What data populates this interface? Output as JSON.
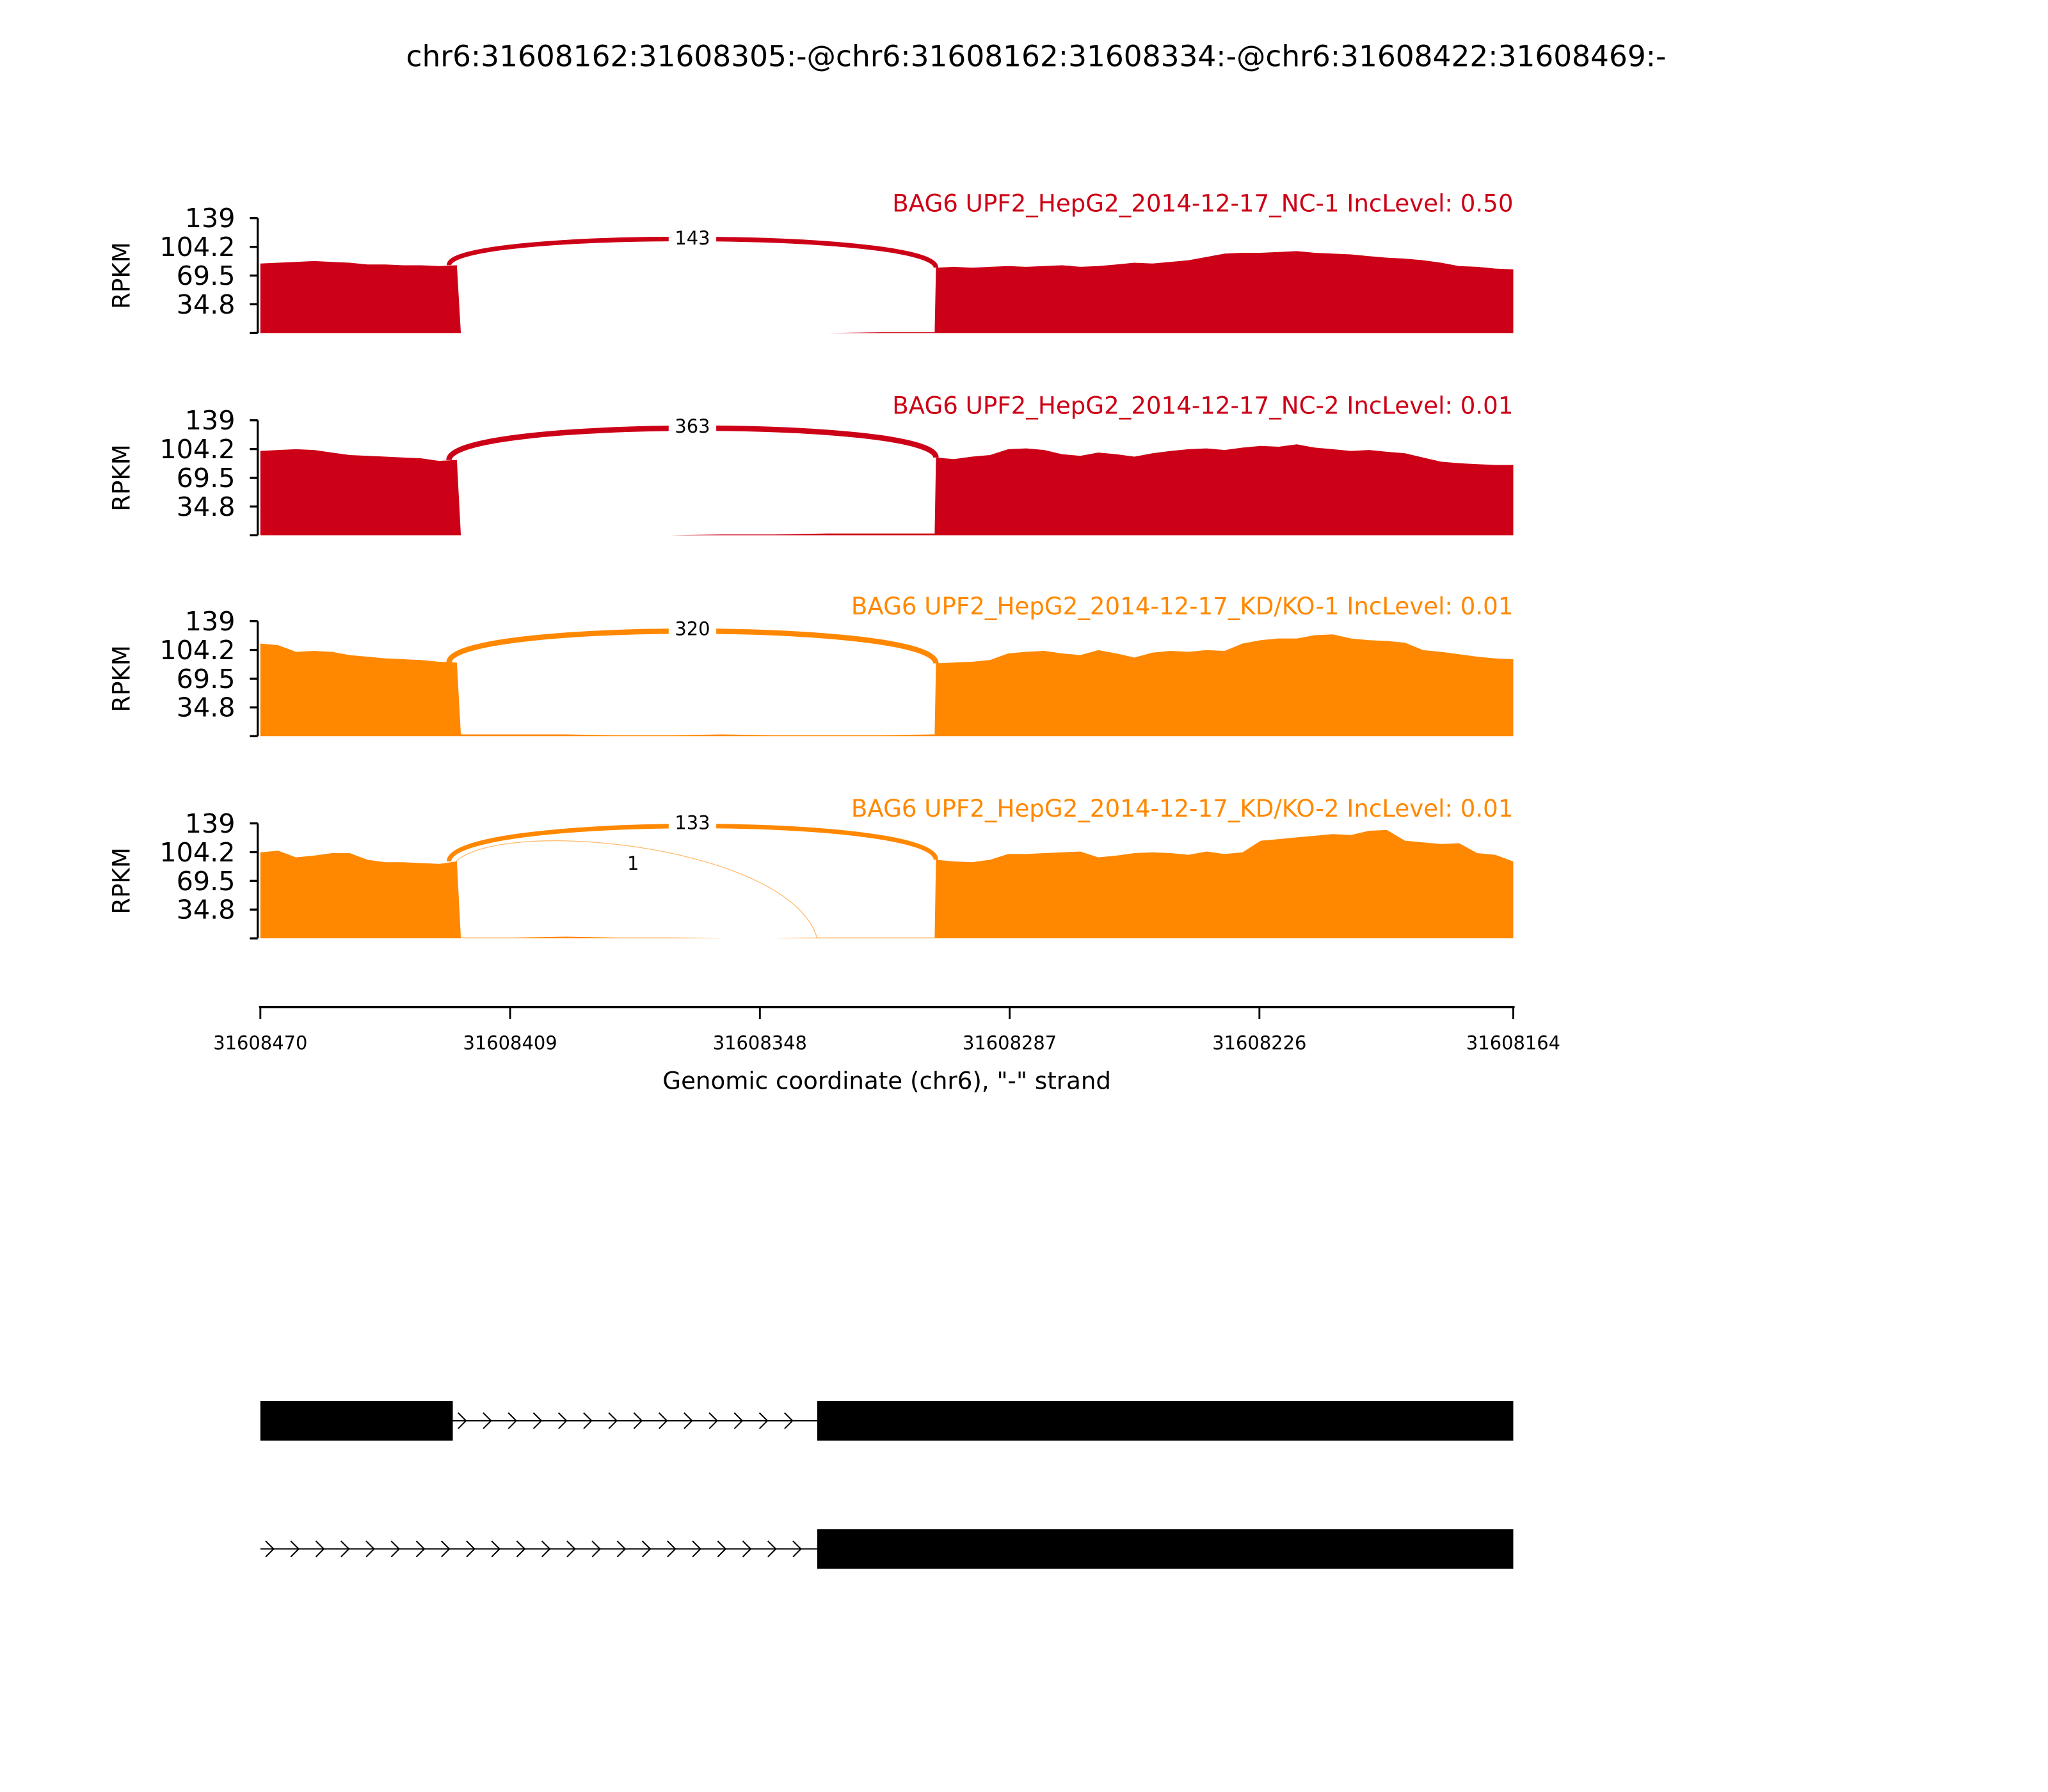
{
  "title": "chr6:31608162:31608305:-@chr6:31608162:31608334:-@chr6:31608422:31608469:-",
  "chart_data": {
    "type": "area",
    "title": "chr6:31608162:31608305:-@chr6:31608162:31608334:-@chr6:31608422:31608469:-",
    "xlabel": "Genomic coordinate (chr6), \"-\" strand",
    "ylabel": "RPKM",
    "xlim": [
      31608470,
      31608164
    ],
    "xticks": [
      "31608470",
      "31608409",
      "31608348",
      "31608287",
      "31608226",
      "31608164"
    ],
    "ylim": [
      0,
      139
    ],
    "yticks": [
      "139",
      "104.2",
      "69.5",
      "34.8"
    ],
    "exon_left": [
      31608470,
      31608422
    ],
    "exon_right": [
      31608305,
      31608164
    ],
    "panels": [
      {
        "label": "BAG6 UPF2_HepG2_2014-12-17_NC-1 IncLevel: 0.50",
        "color": "#cc0016",
        "left": [
          84,
          85,
          86,
          87,
          86,
          85,
          83,
          83,
          82,
          82,
          81,
          82
        ],
        "intron": [
          0,
          0,
          0,
          0,
          0,
          0,
          0,
          0,
          1,
          1
        ],
        "right": [
          79,
          80,
          79,
          80,
          81,
          80,
          81,
          82,
          80,
          81,
          83,
          85,
          84,
          86,
          88,
          92,
          96,
          97,
          97,
          98,
          99,
          97,
          96,
          95,
          93,
          91,
          90,
          88,
          85,
          81,
          80,
          78,
          77
        ],
        "junctions": [
          {
            "count": "143",
            "from": 31608422,
            "to": 31608305,
            "peak": 112
          }
        ]
      },
      {
        "label": "BAG6 UPF2_HepG2_2014-12-17_NC-2 IncLevel: 0.01",
        "color": "#cc0016",
        "left": [
          102,
          103,
          104,
          103,
          100,
          97,
          96,
          95,
          94,
          93,
          90,
          91
        ],
        "intron": [
          0,
          0,
          0,
          0,
          0,
          1,
          1,
          2,
          2,
          2
        ],
        "right": [
          94,
          92,
          95,
          97,
          104,
          105,
          103,
          98,
          96,
          100,
          98,
          95,
          99,
          102,
          104,
          105,
          103,
          106,
          108,
          107,
          110,
          106,
          104,
          102,
          103,
          101,
          99,
          94,
          89,
          87,
          86,
          85,
          85
        ],
        "junctions": [
          {
            "count": "363",
            "from": 31608422,
            "to": 31608305,
            "peak": 129
          }
        ]
      },
      {
        "label": "BAG6 UPF2_HepG2_2014-12-17_KD/KO-1 IncLevel: 0.01",
        "color": "#ff8800",
        "left": [
          112,
          110,
          102,
          103,
          102,
          98,
          96,
          94,
          93,
          92,
          90,
          89
        ],
        "intron": [
          2,
          2,
          2,
          1,
          1,
          2,
          1,
          1,
          1,
          2
        ],
        "right": [
          88,
          89,
          90,
          92,
          100,
          102,
          103,
          100,
          98,
          104,
          100,
          95,
          101,
          103,
          102,
          104,
          103,
          112,
          116,
          118,
          118,
          122,
          123,
          118,
          116,
          115,
          113,
          104,
          102,
          99,
          96,
          94,
          93
        ],
        "junctions": [
          {
            "count": "320",
            "from": 31608422,
            "to": 31608305,
            "peak": 127
          }
        ]
      },
      {
        "label": "BAG6 UPF2_HepG2_2014-12-17_KD/KO-2 IncLevel: 0.01",
        "color": "#ff8800",
        "left": [
          104,
          106,
          98,
          100,
          103,
          103,
          95,
          92,
          92,
          91,
          90,
          93
        ],
        "intron": [
          1,
          1,
          2,
          1,
          1,
          0,
          0,
          1,
          1,
          1
        ],
        "right": [
          95,
          93,
          92,
          95,
          102,
          102,
          103,
          104,
          105,
          98,
          100,
          103,
          104,
          103,
          101,
          105,
          102,
          104,
          118,
          120,
          122,
          124,
          126,
          125,
          130,
          131,
          118,
          116,
          114,
          115,
          103,
          101,
          93
        ],
        "junctions": [
          {
            "count": "133",
            "from": 31608422,
            "to": 31608305,
            "peak": 137
          },
          {
            "count": "1",
            "from": 31608421,
            "to": 31608334,
            "peak": 112
          }
        ]
      }
    ],
    "transcripts": [
      {
        "exons": [
          [
            31608470,
            31608423
          ],
          [
            31608334,
            31608164
          ]
        ]
      },
      {
        "exons": [
          [
            31608334,
            31608164
          ]
        ]
      }
    ]
  }
}
